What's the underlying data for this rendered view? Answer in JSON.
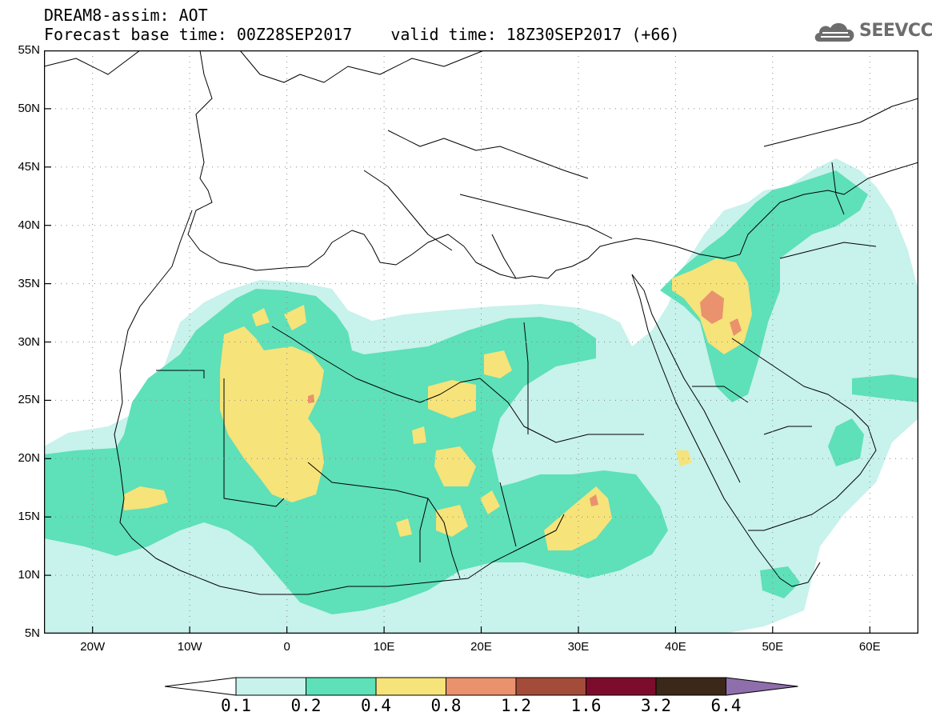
{
  "title": {
    "line1": "DREAM8-assim: AOT",
    "base_time": "Forecast base time: 00Z28SEP2017",
    "valid_time": "valid time: 18Z30SEP2017 (+66)"
  },
  "logo": {
    "text": "SEEVCCC",
    "icon": "cloud-icon",
    "color": "#6d6d6d"
  },
  "map_extent": {
    "lon_min": -25,
    "lon_max": 65,
    "lat_min": 5,
    "lat_max": 55
  },
  "lat_ticks": [
    "5N",
    "10N",
    "15N",
    "20N",
    "25N",
    "30N",
    "35N",
    "40N",
    "45N",
    "50N",
    "55N"
  ],
  "lat_tick_values": [
    5,
    10,
    15,
    20,
    25,
    30,
    35,
    40,
    45,
    50,
    55
  ],
  "lon_ticks": [
    "20W",
    "10W",
    "0",
    "10E",
    "20E",
    "30E",
    "40E",
    "50E",
    "60E"
  ],
  "lon_tick_values": [
    -20,
    -10,
    0,
    10,
    20,
    30,
    40,
    50,
    60
  ],
  "colorbar": {
    "labels": [
      "0.1",
      "0.2",
      "0.4",
      "0.8",
      "1.2",
      "1.6",
      "3.2",
      "6.4"
    ],
    "colors": [
      "#ffffff",
      "#c8f2ec",
      "#5ee0b8",
      "#f6e37a",
      "#e9926d",
      "#a34c3a",
      "#7d0c2c",
      "#3c2818",
      "#8e6fab"
    ]
  }
}
